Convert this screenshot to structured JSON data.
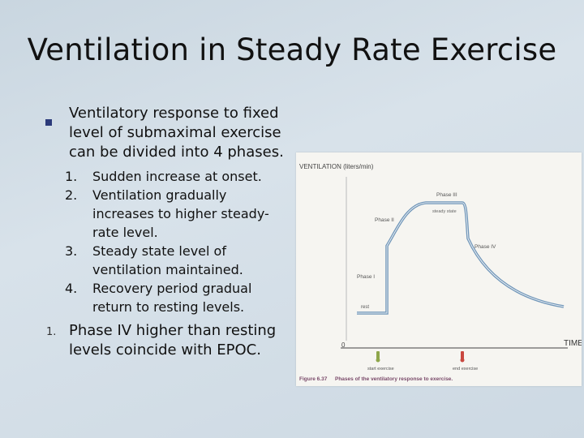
{
  "slide": {
    "title": "Ventilation in Steady Rate Exercise",
    "main_bullet": "Ventilatory response to fixed level of submaximal exercise can be divided into 4 phases.",
    "sub_items": [
      {
        "num": "1.",
        "text": "Sudden increase at onset."
      },
      {
        "num": "2.",
        "text": "Ventilation gradually increases to higher steady-rate level."
      },
      {
        "num": "3.",
        "text": "Steady state level of ventilation maintained."
      },
      {
        "num": "4.",
        "text": "Recovery period gradual return to resting levels."
      }
    ],
    "last_num": "1.",
    "last_text": "Phase IV higher than resting levels coincide with EPOC."
  },
  "figure": {
    "y_label": "VENTILATION (liters/min)",
    "x_label": "TIME",
    "origin": "0",
    "labels": {
      "phase1": "Phase I",
      "phase2": "Phase II",
      "phase3": "Phase III",
      "phase4": "Phase IV",
      "steady": "steady state",
      "rest": "rest",
      "start": "start exercise",
      "end": "end exercise"
    },
    "caption_num": "Figure 6.37",
    "caption": "Phases of the ventilatory response to exercise."
  },
  "colors": {
    "curve": "#6f95b8",
    "bullet": "#2b3a7a"
  }
}
